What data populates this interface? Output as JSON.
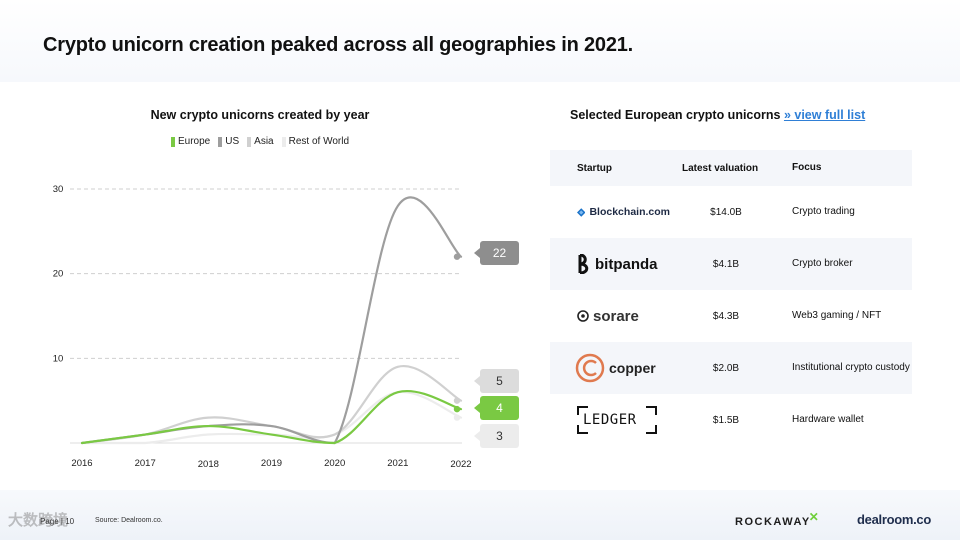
{
  "header": {
    "title": "Crypto unicorn creation peaked across all geographies in 2021."
  },
  "chart_data": {
    "type": "line",
    "title": "New crypto unicorns created by year",
    "xlabel": "",
    "ylabel": "",
    "categories": [
      "2016",
      "2017",
      "2018",
      "2019",
      "2020",
      "2021",
      "2022"
    ],
    "ylim": [
      0,
      30
    ],
    "yticks": [
      "10",
      "20",
      "30"
    ],
    "grid": true,
    "legend_position": "top-center",
    "series": [
      {
        "name": "Europe",
        "color": "#7ac943",
        "values": [
          0,
          1,
          2,
          1,
          0,
          6,
          4
        ]
      },
      {
        "name": "US",
        "color": "#9e9e9e",
        "values": [
          0,
          1,
          2,
          2,
          0,
          28,
          22
        ]
      },
      {
        "name": "Asia",
        "color": "#d0d0d0",
        "values": [
          0,
          1,
          3,
          2,
          1,
          9,
          5
        ]
      },
      {
        "name": "Rest of World",
        "color": "#ececec",
        "values": [
          0,
          0,
          1,
          1,
          1,
          6,
          3
        ]
      }
    ],
    "end_labels": [
      {
        "text": "22",
        "series": "US",
        "fill": "#8e8e8e",
        "text_color": "#ffffff"
      },
      {
        "text": "5",
        "series": "Asia",
        "fill": "#dcdcdc",
        "text_color": "#333333"
      },
      {
        "text": "4",
        "series": "Europe",
        "fill": "#7ac943",
        "text_color": "#ffffff"
      },
      {
        "text": "3",
        "series": "Rest of World",
        "fill": "#ececec",
        "text_color": "#333333"
      }
    ]
  },
  "table": {
    "title": "Selected European crypto unicorns",
    "link": "» view full list",
    "columns": [
      "Startup",
      "Latest valuation",
      "Focus"
    ],
    "rows": [
      {
        "logo": "Blockchain.com",
        "logo_icon": "blockchain-logo-icon",
        "valuation": "$14.0B",
        "focus": "Crypto trading"
      },
      {
        "logo": "bitpanda",
        "logo_icon": "bitpanda-logo-icon",
        "valuation": "$4.1B",
        "focus": "Crypto broker"
      },
      {
        "logo": "sorare",
        "logo_icon": "sorare-logo-icon",
        "valuation": "$4.3B",
        "focus": "Web3 gaming / NFT"
      },
      {
        "logo": "copper",
        "logo_icon": "copper-logo-icon",
        "valuation": "$2.0B",
        "focus": "Institutional crypto custody"
      },
      {
        "logo": "LEDGER",
        "logo_icon": "ledger-logo-icon",
        "valuation": "$1.5B",
        "focus": "Hardware wallet"
      }
    ]
  },
  "footer": {
    "page": "Page | 10",
    "source": "Source: Dealroom.co.",
    "watermark": "大数跨境",
    "brand_rockaway": "ROCKAWAY",
    "brand_dealroom": "dealroom.co"
  }
}
